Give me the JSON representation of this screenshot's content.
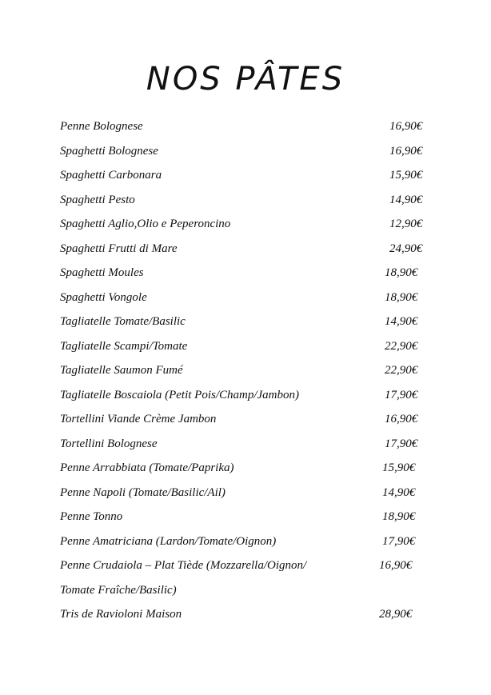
{
  "title": "NOS PÂTES",
  "items": [
    {
      "name": "Penne Bolognese",
      "price": "16,90€"
    },
    {
      "name": "Spaghetti Bolognese",
      "price": "16,90€"
    },
    {
      "name": "Spaghetti Carbonara",
      "price": "15,90€"
    },
    {
      "name": "Spaghetti Pesto",
      "price": "14,90€"
    },
    {
      "name": "Spaghetti Aglio,Olio e Peperoncino",
      "price": "12,90€"
    },
    {
      "name": "Spaghetti Frutti di Mare",
      "price": "24,90€"
    },
    {
      "name": "Spaghetti Moules",
      "price": "18,90€"
    },
    {
      "name": "Spaghetti Vongole",
      "price": "18,90€"
    },
    {
      "name": "Tagliatelle Tomate/Basilic",
      "price": "14,90€"
    },
    {
      "name": "Tagliatelle Scampi/Tomate",
      "price": "22,90€"
    },
    {
      "name": "Tagliatelle Saumon Fumé",
      "price": "22,90€"
    },
    {
      "name": "Tagliatelle Boscaiola (Petit Pois/Champ/Jambon)",
      "price": "17,90€"
    },
    {
      "name": "Tortellini Viande Crème Jambon",
      "price": "16,90€"
    },
    {
      "name": "Tortellini Bolognese",
      "price": "17,90€"
    },
    {
      "name": "Penne Arrabbiata (Tomate/Paprika)",
      "price": "15,90€"
    },
    {
      "name": "Penne Napoli (Tomate/Basilic/Ail)",
      "price": "14,90€"
    },
    {
      "name": "Penne Tonno",
      "price": "18,90€"
    },
    {
      "name": "Penne Amatriciana (Lardon/Tomate/Oignon)",
      "price": "17,90€"
    },
    {
      "name": "Penne Crudaiola – Plat Tiède (Mozzarella/Oignon/",
      "name_line2": "Tomate Fraîche/Basilic)",
      "price": "16,90€"
    },
    {
      "name": "Tris de Ravioloni Maison",
      "price": "28,90€"
    }
  ]
}
